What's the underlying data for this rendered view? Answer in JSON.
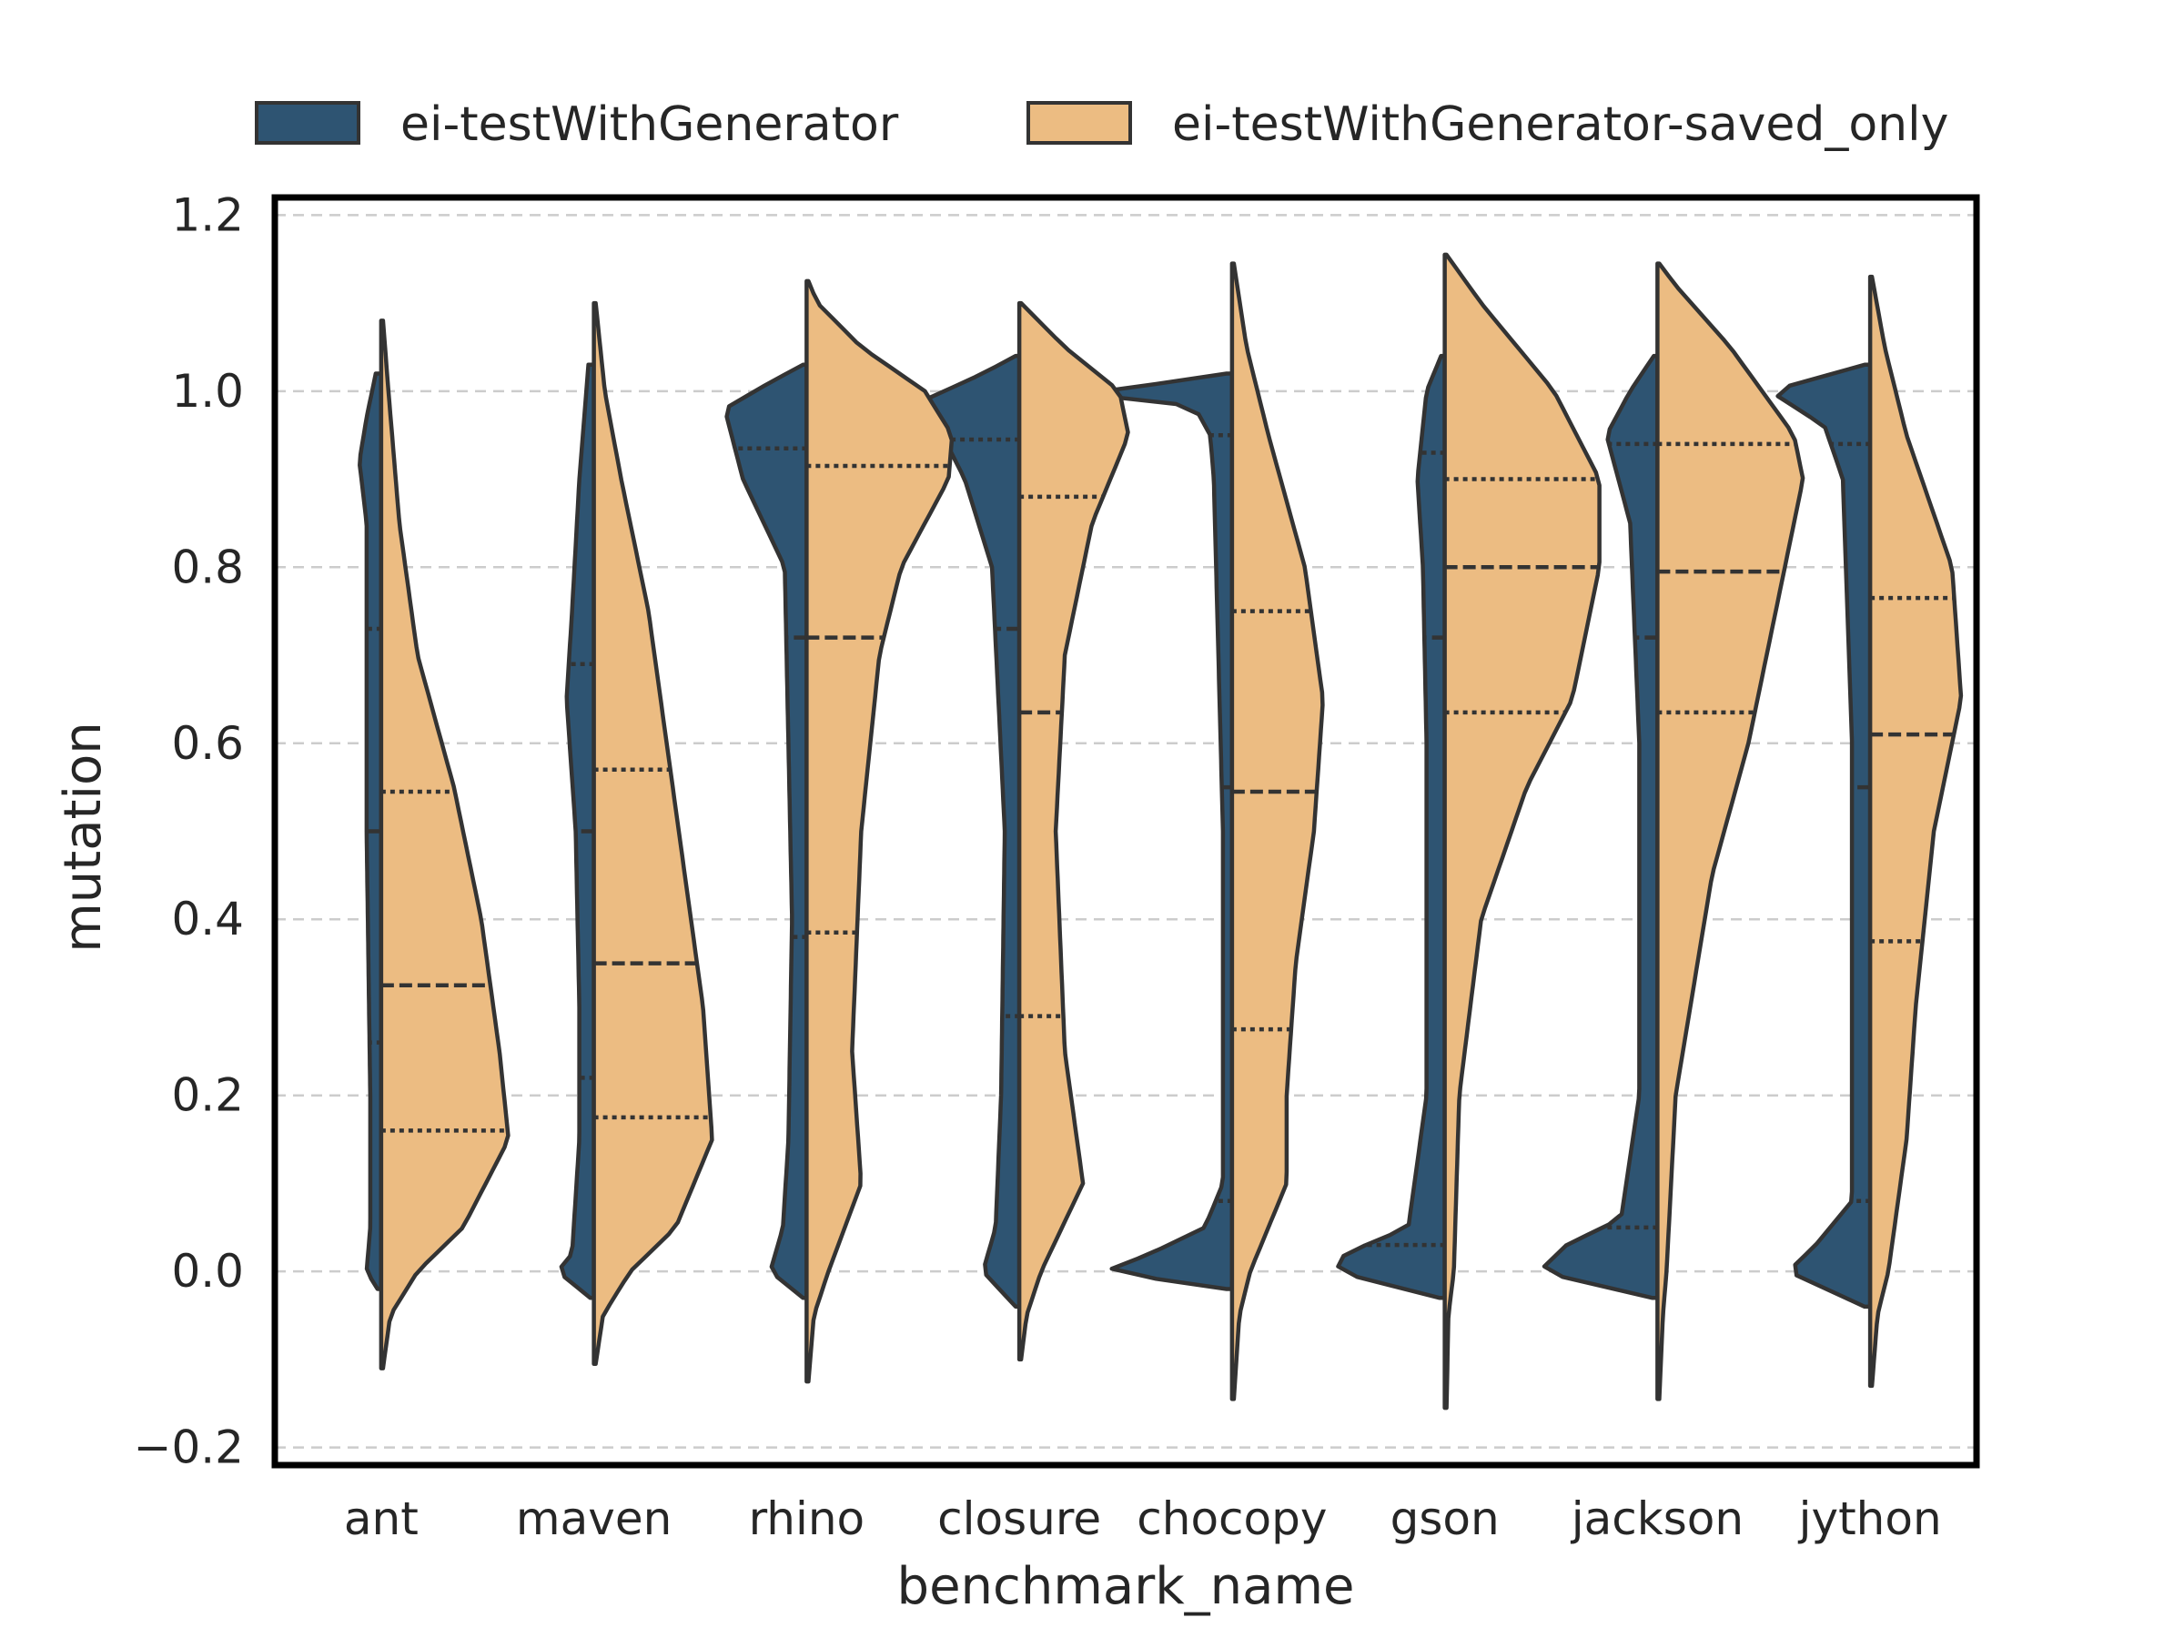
{
  "chart_data": {
    "type": "violin",
    "split": true,
    "inner": "quartile",
    "xlabel": "benchmark_name",
    "ylabel": "mutation",
    "ylim": [
      -0.22,
      1.22
    ],
    "yticks": [
      -0.2,
      0.0,
      0.2,
      0.4,
      0.6,
      0.8,
      1.0,
      1.2
    ],
    "ytick_labels": [
      "−0.2",
      "0.0",
      "0.2",
      "0.4",
      "0.6",
      "0.8",
      "1.0",
      "1.2"
    ],
    "grid": "y dashed",
    "legend_position": "top",
    "categories": [
      "ant",
      "maven",
      "rhino",
      "closure",
      "chocopy",
      "gson",
      "jackson",
      "jython"
    ],
    "series": [
      {
        "name": "ei-testWithGenerator",
        "color": "#2e5472",
        "side": "left",
        "violins": [
          {
            "range": [
              -0.02,
              1.02
            ],
            "profile": [
              [
                -0.02,
                0.002
              ],
              [
                0.0,
                0.008
              ],
              [
                0.05,
                0.006
              ],
              [
                0.2,
                0.006
              ],
              [
                0.5,
                0.008
              ],
              [
                0.7,
                0.008
              ],
              [
                0.85,
                0.008
              ],
              [
                0.92,
                0.012
              ],
              [
                0.97,
                0.008
              ],
              [
                1.02,
                0.003
              ]
            ],
            "quartiles": [
              0.26,
              0.5,
              0.73
            ]
          },
          {
            "range": [
              -0.03,
              1.03
            ],
            "profile": [
              [
                -0.03,
                0.002
              ],
              [
                0.0,
                0.02
              ],
              [
                0.02,
                0.012
              ],
              [
                0.15,
                0.008
              ],
              [
                0.3,
                0.008
              ],
              [
                0.5,
                0.01
              ],
              [
                0.65,
                0.015
              ],
              [
                0.75,
                0.012
              ],
              [
                0.9,
                0.008
              ],
              [
                1.03,
                0.003
              ]
            ],
            "quartiles": [
              0.22,
              0.5,
              0.69
            ]
          },
          {
            "range": [
              -0.03,
              1.03
            ],
            "profile": [
              [
                -0.03,
                0.002
              ],
              [
                0.0,
                0.02
              ],
              [
                0.05,
                0.013
              ],
              [
                0.15,
                0.01
              ],
              [
                0.4,
                0.008
              ],
              [
                0.8,
                0.012
              ],
              [
                0.9,
                0.035
              ],
              [
                0.98,
                0.045
              ],
              [
                1.01,
                0.02
              ],
              [
                1.03,
                0.002
              ]
            ],
            "quartiles": [
              0.38,
              0.72,
              0.935
            ]
          },
          {
            "range": [
              -0.04,
              1.04
            ],
            "profile": [
              [
                -0.04,
                0.002
              ],
              [
                0.0,
                0.02
              ],
              [
                0.05,
                0.013
              ],
              [
                0.2,
                0.01
              ],
              [
                0.5,
                0.008
              ],
              [
                0.8,
                0.015
              ],
              [
                0.9,
                0.03
              ],
              [
                0.99,
                0.052
              ],
              [
                1.02,
                0.02
              ],
              [
                1.04,
                0.002
              ]
            ],
            "quartiles": [
              0.29,
              0.73,
              0.945
            ]
          },
          {
            "range": [
              -0.02,
              1.02
            ],
            "profile": [
              [
                -0.02,
                0.003
              ],
              [
                0.0,
                0.07
              ],
              [
                0.02,
                0.045
              ],
              [
                0.05,
                0.015
              ],
              [
                0.1,
                0.005
              ],
              [
                0.5,
                0.005
              ],
              [
                0.9,
                0.01
              ],
              [
                0.95,
                0.012
              ],
              [
                0.98,
                0.02
              ],
              [
                0.99,
                0.04
              ],
              [
                1.0,
                0.1
              ],
              [
                1.01,
                0.03
              ],
              [
                1.02,
                0.003
              ]
            ],
            "quartiles": [
              0.08,
              0.55,
              0.95
            ]
          },
          {
            "range": [
              -0.03,
              1.04
            ],
            "profile": [
              [
                -0.03,
                0.003
              ],
              [
                0.0,
                0.06
              ],
              [
                0.02,
                0.055
              ],
              [
                0.05,
                0.02
              ],
              [
                0.2,
                0.01
              ],
              [
                0.6,
                0.01
              ],
              [
                0.8,
                0.012
              ],
              [
                0.9,
                0.015
              ],
              [
                1.0,
                0.01
              ],
              [
                1.04,
                0.002
              ]
            ],
            "quartiles": [
              0.03,
              0.72,
              0.93
            ]
          },
          {
            "range": [
              -0.03,
              1.04
            ],
            "profile": [
              [
                -0.03,
                0.003
              ],
              [
                0.0,
                0.065
              ],
              [
                0.03,
                0.05
              ],
              [
                0.06,
                0.02
              ],
              [
                0.2,
                0.01
              ],
              [
                0.6,
                0.01
              ],
              [
                0.85,
                0.015
              ],
              [
                0.95,
                0.028
              ],
              [
                1.0,
                0.015
              ],
              [
                1.04,
                0.002
              ]
            ],
            "quartiles": [
              0.05,
              0.72,
              0.94
            ]
          },
          {
            "range": [
              -0.04,
              1.03
            ],
            "profile": [
              [
                -0.04,
                0.003
              ],
              [
                0.0,
                0.045
              ],
              [
                0.03,
                0.03
              ],
              [
                0.08,
                0.01
              ],
              [
                0.3,
                0.01
              ],
              [
                0.6,
                0.01
              ],
              [
                0.9,
                0.015
              ],
              [
                0.96,
                0.025
              ],
              [
                1.0,
                0.055
              ],
              [
                1.03,
                0.003
              ]
            ],
            "quartiles": [
              0.08,
              0.55,
              0.94
            ]
          }
        ]
      },
      {
        "name": "ei-testWithGenerator-saved_only",
        "color": "#ecbc82",
        "side": "right",
        "violins": [
          {
            "range": [
              -0.11,
              1.08
            ],
            "profile": [
              [
                -0.11,
                0.001
              ],
              [
                -0.05,
                0.005
              ],
              [
                0.0,
                0.02
              ],
              [
                0.05,
                0.045
              ],
              [
                0.15,
                0.07
              ],
              [
                0.25,
                0.065
              ],
              [
                0.4,
                0.055
              ],
              [
                0.55,
                0.04
              ],
              [
                0.7,
                0.02
              ],
              [
                0.85,
                0.01
              ],
              [
                1.0,
                0.004
              ],
              [
                1.08,
                0.001
              ]
            ],
            "quartiles": [
              0.16,
              0.325,
              0.545
            ]
          },
          {
            "range": [
              -0.105,
              1.1
            ],
            "profile": [
              [
                -0.105,
                0.001
              ],
              [
                -0.05,
                0.005
              ],
              [
                0.0,
                0.02
              ],
              [
                0.05,
                0.045
              ],
              [
                0.15,
                0.065
              ],
              [
                0.3,
                0.06
              ],
              [
                0.45,
                0.05
              ],
              [
                0.6,
                0.04
              ],
              [
                0.75,
                0.03
              ],
              [
                0.9,
                0.015
              ],
              [
                1.0,
                0.006
              ],
              [
                1.1,
                0.001
              ]
            ],
            "quartiles": [
              0.175,
              0.35,
              0.57
            ]
          },
          {
            "range": [
              -0.125,
              1.125
            ],
            "profile": [
              [
                -0.125,
                0.001
              ],
              [
                -0.05,
                0.004
              ],
              [
                0.0,
                0.012
              ],
              [
                0.1,
                0.03
              ],
              [
                0.25,
                0.025
              ],
              [
                0.5,
                0.03
              ],
              [
                0.7,
                0.04
              ],
              [
                0.8,
                0.052
              ],
              [
                0.9,
                0.078
              ],
              [
                0.95,
                0.08
              ],
              [
                1.0,
                0.065
              ],
              [
                1.05,
                0.03
              ],
              [
                1.1,
                0.006
              ],
              [
                1.125,
                0.001
              ]
            ],
            "quartiles": [
              0.385,
              0.72,
              0.915
            ]
          },
          {
            "range": [
              -0.1,
              1.1
            ],
            "profile": [
              [
                -0.1,
                0.001
              ],
              [
                -0.05,
                0.004
              ],
              [
                0.0,
                0.012
              ],
              [
                0.1,
                0.035
              ],
              [
                0.25,
                0.025
              ],
              [
                0.5,
                0.02
              ],
              [
                0.7,
                0.025
              ],
              [
                0.85,
                0.04
              ],
              [
                0.95,
                0.06
              ],
              [
                1.0,
                0.055
              ],
              [
                1.05,
                0.025
              ],
              [
                1.1,
                0.001
              ]
            ],
            "quartiles": [
              0.29,
              0.635,
              0.88
            ]
          },
          {
            "range": [
              -0.145,
              1.145
            ],
            "profile": [
              [
                -0.145,
                0.001
              ],
              [
                -0.05,
                0.004
              ],
              [
                0.0,
                0.01
              ],
              [
                0.1,
                0.03
              ],
              [
                0.2,
                0.03
              ],
              [
                0.35,
                0.035
              ],
              [
                0.5,
                0.045
              ],
              [
                0.65,
                0.05
              ],
              [
                0.8,
                0.04
              ],
              [
                0.95,
                0.02
              ],
              [
                1.05,
                0.008
              ],
              [
                1.145,
                0.001
              ]
            ],
            "quartiles": [
              0.275,
              0.545,
              0.75
            ]
          },
          {
            "range": [
              -0.155,
              1.155
            ],
            "profile": [
              [
                -0.155,
                0.001
              ],
              [
                -0.05,
                0.002
              ],
              [
                0.0,
                0.005
              ],
              [
                0.2,
                0.008
              ],
              [
                0.4,
                0.02
              ],
              [
                0.55,
                0.045
              ],
              [
                0.65,
                0.07
              ],
              [
                0.8,
                0.085
              ],
              [
                0.9,
                0.085
              ],
              [
                1.0,
                0.06
              ],
              [
                1.1,
                0.02
              ],
              [
                1.155,
                0.001
              ]
            ],
            "quartiles": [
              0.635,
              0.8,
              0.9
            ]
          },
          {
            "range": [
              -0.145,
              1.145
            ],
            "profile": [
              [
                -0.145,
                0.001
              ],
              [
                -0.05,
                0.003
              ],
              [
                0.0,
                0.005
              ],
              [
                0.2,
                0.01
              ],
              [
                0.45,
                0.03
              ],
              [
                0.6,
                0.05
              ],
              [
                0.75,
                0.065
              ],
              [
                0.9,
                0.08
              ],
              [
                0.95,
                0.075
              ],
              [
                1.05,
                0.04
              ],
              [
                1.12,
                0.01
              ],
              [
                1.145,
                0.001
              ]
            ],
            "quartiles": [
              0.635,
              0.795,
              0.94
            ]
          },
          {
            "range": [
              -0.13,
              1.13
            ],
            "profile": [
              [
                -0.13,
                0.001
              ],
              [
                -0.05,
                0.004
              ],
              [
                0.0,
                0.01
              ],
              [
                0.15,
                0.02
              ],
              [
                0.3,
                0.025
              ],
              [
                0.5,
                0.035
              ],
              [
                0.65,
                0.05
              ],
              [
                0.8,
                0.045
              ],
              [
                0.95,
                0.02
              ],
              [
                1.05,
                0.008
              ],
              [
                1.13,
                0.001
              ]
            ],
            "quartiles": [
              0.375,
              0.61,
              0.765
            ]
          }
        ]
      }
    ]
  }
}
